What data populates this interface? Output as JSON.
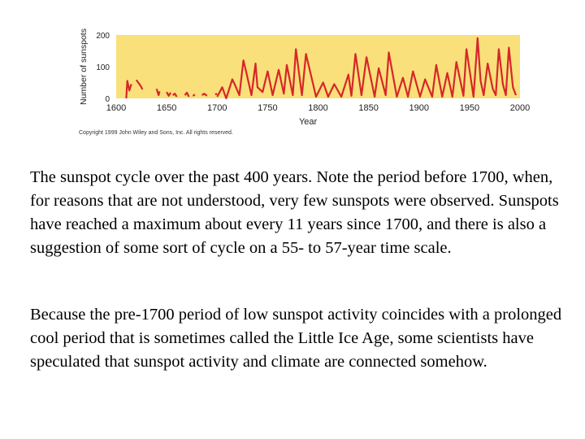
{
  "chart_data": {
    "type": "line",
    "xlabel": "Year",
    "ylabel": "Number of sunspots",
    "xlim": [
      1600,
      2000
    ],
    "ylim": [
      0,
      200
    ],
    "x_ticks": [
      "1600",
      "1650",
      "1700",
      "1750",
      "1800",
      "1850",
      "1900",
      "1950",
      "2000"
    ],
    "y_ticks": [
      "0",
      "100",
      "200"
    ],
    "grid": false,
    "background_color": "#f9e07b",
    "line_color": "#d62728",
    "series": [
      {
        "segments": [
          {
            "x": [
              1610,
              1611,
              1613,
              1615
            ],
            "y": [
              0,
              55,
              25,
              45
            ]
          },
          {
            "x": [
              1620,
              1623,
              1625,
              1626
            ],
            "y": [
              58,
              45,
              35,
              28
            ]
          },
          {
            "x": [
              1640,
              1642,
              1643
            ],
            "y": [
              30,
              10,
              22
            ]
          },
          {
            "x": [
              1650,
              1652,
              1654
            ],
            "y": [
              20,
              8,
              18
            ]
          },
          {
            "x": [
              1656,
              1658,
              1660
            ],
            "y": [
              10,
              15,
              5
            ]
          },
          {
            "x": [
              1668,
              1670,
              1672
            ],
            "y": [
              10,
              18,
              5
            ]
          },
          {
            "x": [
              1676,
              1678
            ],
            "y": [
              8,
              12
            ]
          },
          {
            "x": [
              1685,
              1687,
              1690
            ],
            "y": [
              10,
              15,
              8
            ]
          },
          {
            "x": [
              1698,
              1700
            ],
            "y": [
              12,
              15
            ]
          },
          {
            "x": [
              1700,
              1705,
              1709,
              1715,
              1718,
              1722,
              1726,
              1729,
              1734,
              1738,
              1740,
              1745,
              1750,
              1755,
              1761,
              1766,
              1769,
              1775,
              1778,
              1784,
              1788,
              1798,
              1805,
              1810,
              1816,
              1823,
              1830,
              1833,
              1837,
              1843,
              1848,
              1856,
              1860,
              1867,
              1870,
              1878,
              1884,
              1889,
              1894,
              1901,
              1906,
              1913,
              1917,
              1923,
              1928,
              1933,
              1937,
              1944,
              1947,
              1954,
              1958,
              1961,
              1964,
              1968,
              1973,
              1976,
              1979,
              1983,
              1986,
              1989,
              1993,
              1996
            ],
            "y": [
              5,
              35,
              0,
              60,
              40,
              10,
              120,
              80,
              10,
              110,
              35,
              20,
              85,
              10,
              90,
              15,
              105,
              10,
              155,
              10,
              140,
              5,
              50,
              5,
              45,
              5,
              75,
              8,
              140,
              10,
              130,
              5,
              95,
              10,
              145,
              5,
              65,
              5,
              85,
              5,
              60,
              5,
              105,
              5,
              80,
              5,
              115,
              8,
              155,
              5,
              190,
              55,
              10,
              110,
              30,
              10,
              155,
              45,
              10,
              160,
              35,
              10
            ]
          }
        ]
      }
    ]
  },
  "copyright": "Copyright 1999 John Wiley and Sons, Inc. All rights reserved.",
  "caption": {
    "paragraph_1": "The sunspot cycle over the past 400 years. Note the period before 1700, when, for reasons that are not understood, very few sunspots were observed. Sunspots have reached a maximum about every 11 years since 1700, and there is also a suggestion of some sort of cycle on a 55- to 57-year time scale.",
    "paragraph_2": " Because the pre-1700 period of low sunspot activity coincides with a prolonged cool period that is sometimes called the Little Ice Age, some scientists have speculated that sunspot activity and climate are connected somehow."
  }
}
